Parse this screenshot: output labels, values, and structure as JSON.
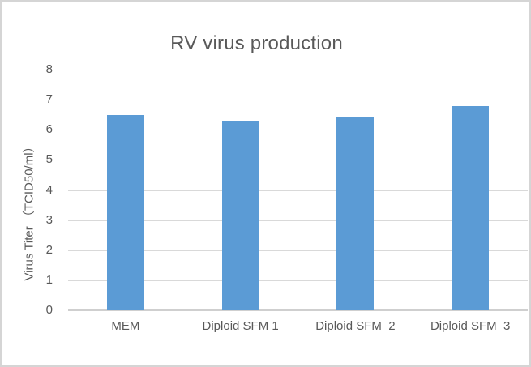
{
  "chart_data": {
    "type": "bar",
    "title": "RV virus production",
    "categories": [
      "MEM",
      "Diploid SFM 1",
      "Diploid SFM  2",
      "Diploid SFM  3"
    ],
    "values": [
      6.5,
      6.3,
      6.4,
      6.8
    ],
    "xlabel": "",
    "ylabel": "Virus Titer （TCID50/ml）",
    "ylim": [
      0,
      8
    ],
    "yticks": [
      0,
      1,
      2,
      3,
      4,
      5,
      6,
      7,
      8
    ],
    "grid": true,
    "legend": false,
    "bar_color": "#5b9bd5",
    "gridline_color": "#d9d9d9",
    "axis_line_color": "#cfcfcf",
    "text_color": "#595959",
    "chart_border_color": "#d5d5d5",
    "background_color": "#ffffff"
  }
}
